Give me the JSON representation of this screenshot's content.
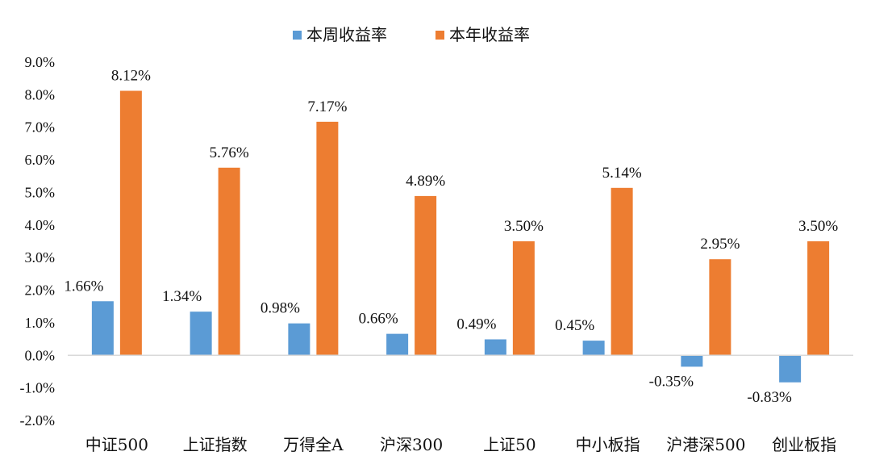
{
  "chart_data": {
    "type": "bar",
    "categories": [
      "中证500",
      "上证指数",
      "万得全A",
      "沪深300",
      "上证50",
      "中小板指",
      "沪港深500",
      "创业板指"
    ],
    "series": [
      {
        "name": "本周收益率",
        "color": "#5b9bd5",
        "values": [
          1.66,
          1.34,
          0.98,
          0.66,
          0.49,
          0.45,
          -0.35,
          -0.83
        ],
        "labels": [
          "1.66%",
          "1.34%",
          "0.98%",
          "0.66%",
          "0.49%",
          "0.45%",
          "-0.35%",
          "-0.83%"
        ]
      },
      {
        "name": "本年收益率",
        "color": "#ed7d31",
        "values": [
          8.12,
          5.76,
          7.17,
          4.89,
          3.5,
          5.14,
          2.95,
          3.5
        ],
        "labels": [
          "8.12%",
          "5.76%",
          "7.17%",
          "4.89%",
          "3.50%",
          "5.14%",
          "2.95%",
          "3.50%"
        ]
      }
    ],
    "y_ticks": [
      "9.0%",
      "8.0%",
      "7.0%",
      "6.0%",
      "5.0%",
      "4.0%",
      "3.0%",
      "2.0%",
      "1.0%",
      "0.0%",
      "-1.0%",
      "-2.0%"
    ],
    "ylim": [
      -2.0,
      9.0
    ],
    "grid": false,
    "legend_position": "top-center"
  }
}
